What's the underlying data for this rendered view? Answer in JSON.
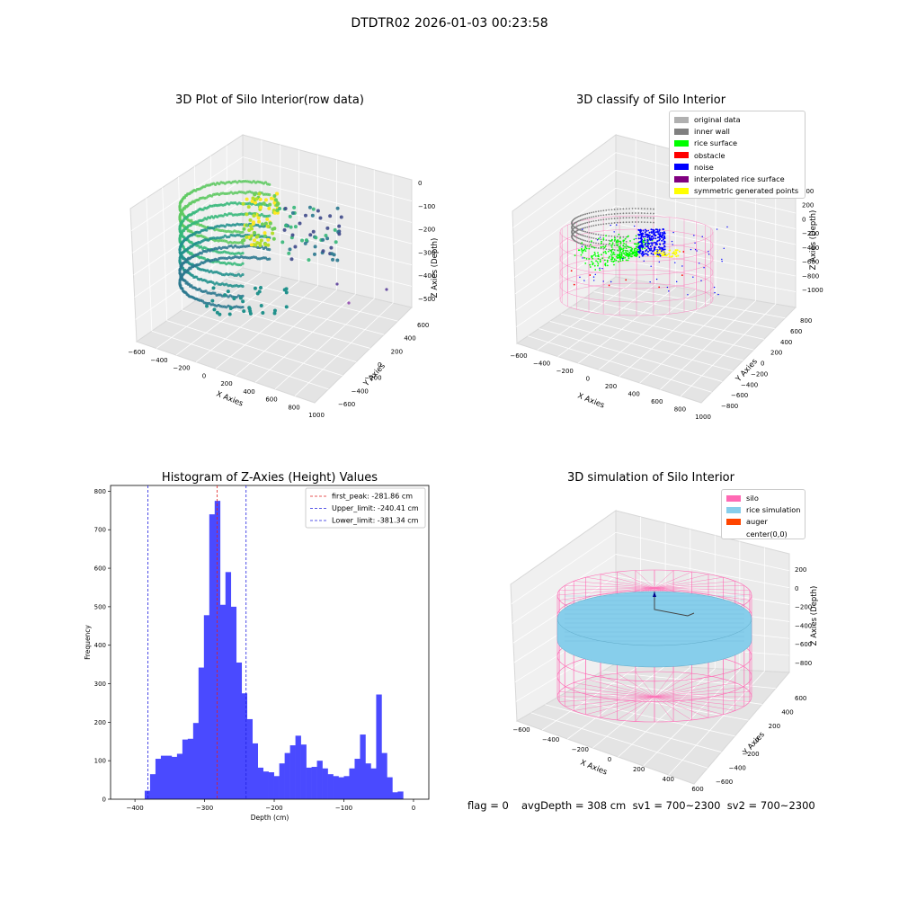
{
  "suptitle": "DTDTR02 2026-01-03 00:23:58",
  "footer": {
    "flag": "flag = 0",
    "avg": "avgDepth = 308 cm  sv1 = 700~2300  sv2 = 700~2300"
  },
  "colors": {
    "hist_bar": "#4a4aff",
    "peak_line": "#e02020",
    "limit_line": "#2020e0",
    "silo": "#ff69b4",
    "rice_sim": "#87ceeb",
    "auger": "#ff4500",
    "rice_surface": "#00ff00",
    "noise": "#0000ff",
    "obstacle": "#ff0000"
  },
  "panels": {
    "raw": {
      "title": "3D Plot of Silo Interior(row data)",
      "xlabel": "X Axies",
      "ylabel": "Y Axies",
      "zlabel": "Z Axies (Depth)",
      "xticks": [
        "−600",
        "−400",
        "−200",
        "0",
        "200",
        "400",
        "600",
        "800",
        "1000"
      ],
      "yticks": [
        "600",
        "400",
        "200",
        "0",
        "−200",
        "−400",
        "−600"
      ],
      "zticks": [
        "0",
        "−100",
        "−200",
        "−300",
        "−400",
        "−500"
      ]
    },
    "classify": {
      "title": "3D classify of Silo Interior",
      "xlabel": "X Axies",
      "ylabel": "Y Axies",
      "zlabel": "Z Axies (Depth)",
      "xticks": [
        "−600",
        "−400",
        "−200",
        "0",
        "200",
        "400",
        "600",
        "800",
        "1000"
      ],
      "yticks": [
        "800",
        "600",
        "400",
        "200",
        "0",
        "−200",
        "−400",
        "−600",
        "−800"
      ],
      "zticks": [
        "400",
        "200",
        "0",
        "−200",
        "−400",
        "−600",
        "−800",
        "−1000"
      ],
      "legend": [
        {
          "label": "original data",
          "color": "#b0b0b0"
        },
        {
          "label": "inner wall",
          "color": "#808080"
        },
        {
          "label": "rice surface",
          "color": "#00ff00"
        },
        {
          "label": "obstacle",
          "color": "#ff0000"
        },
        {
          "label": "noise",
          "color": "#0000ff"
        },
        {
          "label": "interpolated rice surface",
          "color": "#800080"
        },
        {
          "label": "symmetric generated points",
          "color": "#ffff00"
        }
      ]
    },
    "sim": {
      "title": "3D simulation of Silo Interior",
      "xlabel": "X Axies",
      "ylabel": "Y Axies",
      "zlabel": "Z Axies (Depth)",
      "xticks": [
        "−600",
        "−400",
        "−200",
        "0",
        "200",
        "400",
        "600"
      ],
      "yticks": [
        "600",
        "400",
        "200",
        "0",
        "−200",
        "−400",
        "−600"
      ],
      "zticks": [
        "200",
        "0",
        "−200",
        "−400",
        "−600",
        "−800"
      ],
      "legend": [
        {
          "label": "silo",
          "color": "#ff69b4"
        },
        {
          "label": "rice simulation",
          "color": "#87ceeb"
        },
        {
          "label": "auger",
          "color": "#ff4500"
        },
        {
          "label": "center(0,0)",
          "color": ""
        }
      ]
    }
  },
  "chart_data": [
    {
      "type": "bar",
      "title": "Histogram of Z-Axies (Height) Values",
      "xlabel": "Depth (cm)",
      "ylabel": "Frequency",
      "xlim": [
        -435,
        22
      ],
      "ylim": [
        0,
        815
      ],
      "xticks": [
        -400,
        -300,
        -200,
        -100,
        0
      ],
      "yticks": [
        0,
        100,
        200,
        300,
        400,
        500,
        600,
        700,
        800
      ],
      "bin_edges_start": -386,
      "bin_width": 7.73,
      "values": [
        22,
        65,
        105,
        113,
        113,
        110,
        118,
        155,
        157,
        198,
        342,
        478,
        740,
        775,
        505,
        590,
        500,
        355,
        275,
        208,
        145,
        82,
        72,
        70,
        60,
        93,
        120,
        140,
        165,
        142,
        82,
        84,
        100,
        80,
        65,
        60,
        57,
        60,
        80,
        105,
        168,
        93,
        80,
        272,
        120,
        57,
        18,
        20
      ],
      "vlines": [
        {
          "label": "first_peak: -281.86 cm",
          "x": -281.86,
          "style": "peak"
        },
        {
          "label": "Upper_limit: -240.41 cm",
          "x": -240.41,
          "style": "limit"
        },
        {
          "label": "Lower_limit: -381.34 cm",
          "x": -381.34,
          "style": "limit"
        }
      ],
      "legend_position": "top-right"
    }
  ]
}
